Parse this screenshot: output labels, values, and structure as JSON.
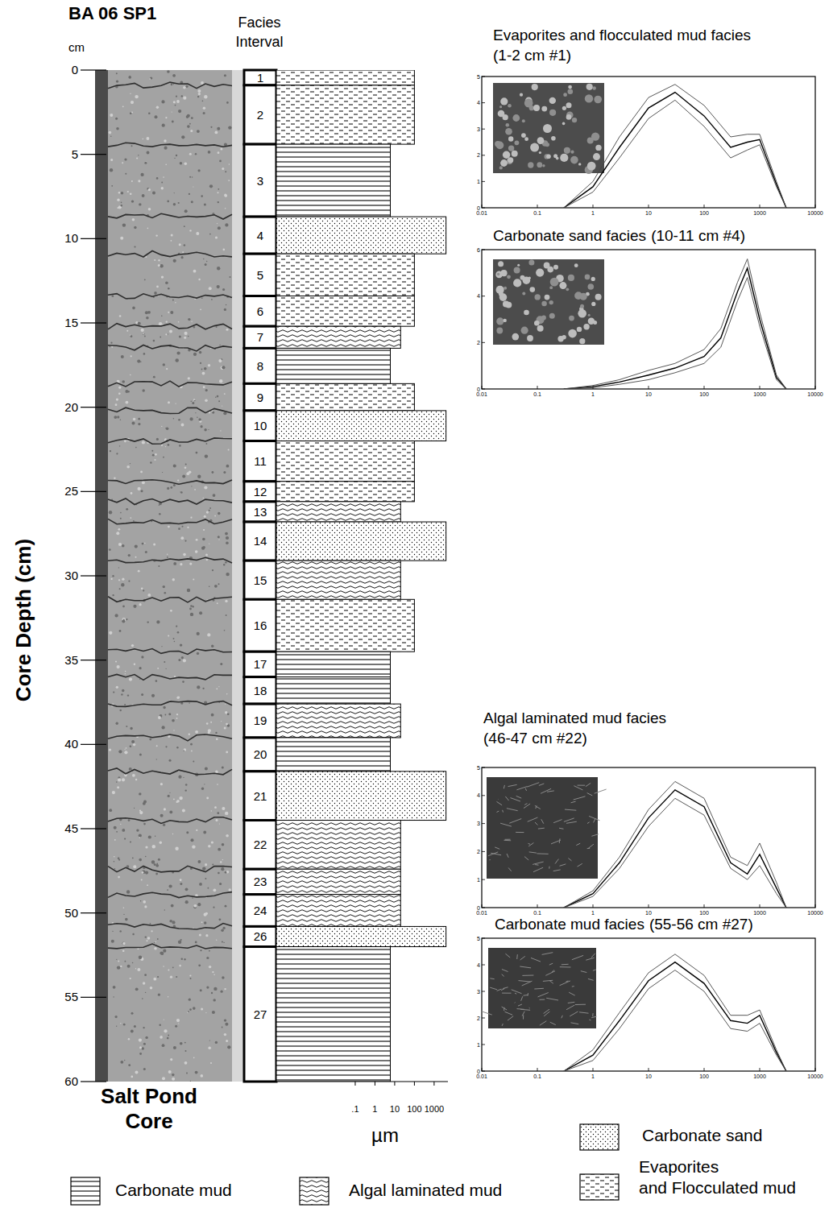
{
  "chart_data": [
    {
      "type": "bar",
      "orientation": "horizontal",
      "log": "x",
      "legend": "bottom",
      "title": "BA 06 SP1",
      "subtitle": "Salt Pond Core",
      "category_header": "Facies Interval",
      "y_label": "Core Depth (cm)",
      "y_unit": "cm",
      "x_label": "µm",
      "ylim": [
        0,
        60
      ],
      "yticks": [
        0,
        5,
        10,
        15,
        20,
        25,
        30,
        35,
        40,
        45,
        50,
        55,
        60
      ],
      "xlim": [
        1e-05,
        5000
      ],
      "xticks": [
        {
          "value": 0.1,
          "label": ".1"
        },
        1,
        10,
        100,
        1000
      ],
      "facies_types": [
        "Carbonate mud",
        "Algal laminated mud",
        "Carbonate sand",
        "Evaporites and Flocculated mud"
      ],
      "categories": [
        "1",
        "2",
        "3",
        "4",
        "5",
        "6",
        "7",
        "8",
        "9",
        "10",
        "11",
        "12",
        "13",
        "14",
        "15",
        "16",
        "17",
        "18",
        "19",
        "20",
        "21",
        "22",
        "23",
        "24",
        "26",
        "27"
      ],
      "depth_top": [
        0,
        0.9,
        4.4,
        8.7,
        10.9,
        13.4,
        15.2,
        16.5,
        18.6,
        20.2,
        22.0,
        24.4,
        25.6,
        26.8,
        29.1,
        31.4,
        34.5,
        36.0,
        37.6,
        39.6,
        41.6,
        44.5,
        47.4,
        48.9,
        50.8,
        52.0
      ],
      "depth_bottom": [
        0.9,
        4.4,
        8.7,
        10.9,
        13.4,
        15.2,
        16.5,
        18.6,
        20.2,
        22.0,
        24.4,
        25.6,
        26.8,
        29.1,
        31.4,
        34.5,
        36.0,
        37.6,
        39.6,
        41.6,
        44.5,
        47.4,
        48.9,
        50.8,
        52.0,
        60
      ],
      "facies": [
        3,
        3,
        0,
        2,
        3,
        3,
        1,
        0,
        3,
        2,
        3,
        3,
        1,
        2,
        1,
        3,
        0,
        0,
        1,
        0,
        2,
        1,
        1,
        1,
        2,
        0
      ],
      "values": [
        100,
        100,
        6,
        4000,
        100,
        100,
        20,
        6,
        100,
        4000,
        100,
        100,
        20,
        4000,
        20,
        100,
        6,
        6,
        20,
        6,
        4000,
        20,
        20,
        20,
        4000,
        6
      ]
    },
    {
      "type": "line",
      "log": "x",
      "title": "Evaporites and flocculated mud facies",
      "subtitle": "(1-2 cm #1)",
      "xlim": [
        0.01,
        10000
      ],
      "xticks": [
        0.01,
        0.1,
        1,
        10,
        100,
        1000,
        10000
      ],
      "ylim": [
        0,
        5
      ],
      "yticks": [
        0,
        1,
        2,
        3,
        4,
        5
      ],
      "x": [
        0.3,
        1,
        3,
        10,
        30,
        100,
        300,
        600,
        1000,
        2000,
        3000
      ],
      "series": [
        {
          "color": "#000000",
          "values": [
            0,
            0.8,
            2.3,
            3.8,
            4.4,
            3.5,
            2.3,
            2.5,
            2.6,
            0.9,
            0
          ]
        },
        {
          "color": "#444444",
          "values": [
            0,
            1.0,
            2.7,
            4.2,
            4.7,
            3.9,
            2.7,
            2.8,
            2.8,
            1.0,
            0
          ]
        },
        {
          "color": "#444444",
          "values": [
            0,
            0.6,
            1.9,
            3.4,
            4.1,
            3.1,
            1.9,
            2.2,
            2.4,
            0.8,
            0
          ]
        }
      ]
    },
    {
      "type": "line",
      "log": "x",
      "title": "Carbonate sand facies",
      "subtitle": "(10-11 cm #4)",
      "xlim": [
        0.01,
        10000
      ],
      "xticks": [
        0.01,
        0.1,
        1,
        10,
        100,
        1000,
        10000
      ],
      "ylim": [
        0,
        6
      ],
      "yticks": [
        0,
        2,
        4,
        6
      ],
      "x": [
        0.3,
        1,
        3,
        10,
        30,
        100,
        200,
        400,
        600,
        1000,
        2000,
        3000
      ],
      "series": [
        {
          "color": "#000000",
          "values": [
            0,
            0.1,
            0.3,
            0.6,
            0.9,
            1.4,
            2.2,
            4.2,
            5.2,
            3.0,
            0.5,
            0
          ]
        },
        {
          "color": "#444444",
          "values": [
            0,
            0.15,
            0.4,
            0.8,
            1.1,
            1.7,
            2.6,
            4.6,
            5.6,
            3.3,
            0.6,
            0
          ]
        },
        {
          "color": "#444444",
          "values": [
            0,
            0.05,
            0.2,
            0.4,
            0.7,
            1.1,
            1.8,
            3.8,
            4.8,
            2.7,
            0.4,
            0
          ]
        }
      ]
    },
    {
      "type": "line",
      "log": "x",
      "title": "Algal laminated mud facies",
      "subtitle": "(46-47 cm #22)",
      "xlim": [
        0.01,
        10000
      ],
      "xticks": [
        0.01,
        0.1,
        1,
        10,
        100,
        1000,
        10000
      ],
      "ylim": [
        0,
        5
      ],
      "yticks": [
        0,
        1,
        2,
        3,
        4,
        5
      ],
      "x": [
        0.3,
        1,
        3,
        10,
        30,
        100,
        300,
        600,
        1000,
        2000,
        3000
      ],
      "series": [
        {
          "color": "#000000",
          "values": [
            0,
            0.5,
            1.6,
            3.2,
            4.2,
            3.6,
            1.6,
            1.2,
            1.9,
            0.7,
            0
          ]
        },
        {
          "color": "#444444",
          "values": [
            0,
            0.6,
            1.8,
            3.5,
            4.5,
            3.9,
            1.8,
            1.5,
            2.3,
            0.9,
            0
          ]
        },
        {
          "color": "#444444",
          "values": [
            0,
            0.4,
            1.4,
            2.9,
            3.9,
            3.3,
            1.4,
            1.0,
            1.5,
            0.5,
            0
          ]
        }
      ]
    },
    {
      "type": "line",
      "log": "x",
      "title": "Carbonate mud facies",
      "subtitle": "(55-56 cm #27)",
      "xlim": [
        0.01,
        10000
      ],
      "xticks": [
        0.01,
        0.1,
        1,
        10,
        100,
        1000,
        10000
      ],
      "ylim": [
        0,
        5
      ],
      "yticks": [
        0,
        1,
        2,
        3,
        4,
        5
      ],
      "x": [
        0.3,
        1,
        3,
        10,
        30,
        100,
        300,
        600,
        1000,
        2000,
        3000
      ],
      "series": [
        {
          "color": "#000000",
          "values": [
            0,
            0.6,
            1.9,
            3.4,
            4.1,
            3.3,
            1.9,
            1.8,
            2.1,
            0.7,
            0
          ]
        },
        {
          "color": "#444444",
          "values": [
            0,
            0.8,
            2.2,
            3.7,
            4.4,
            3.6,
            2.1,
            2.1,
            2.3,
            0.8,
            0
          ]
        },
        {
          "color": "#444444",
          "values": [
            0,
            0.4,
            1.6,
            3.1,
            3.8,
            3.0,
            1.6,
            1.5,
            1.8,
            0.6,
            0
          ]
        }
      ]
    }
  ]
}
